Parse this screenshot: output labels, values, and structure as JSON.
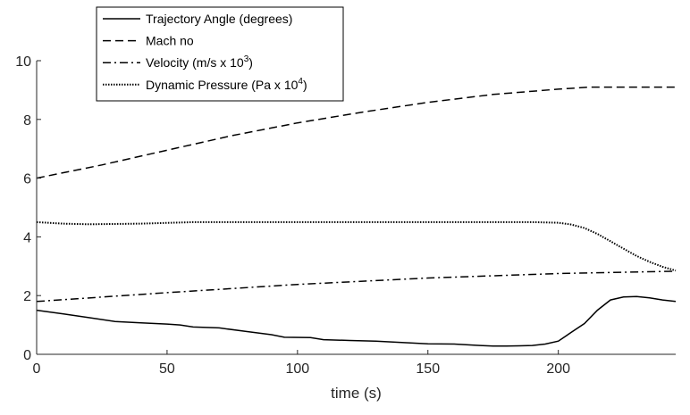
{
  "chart_data": {
    "type": "line",
    "title": "",
    "xlabel": "time (s)",
    "ylabel": "",
    "xlim": [
      0,
      245
    ],
    "ylim": [
      0,
      10
    ],
    "xticks": [
      0,
      50,
      100,
      150,
      200
    ],
    "yticks": [
      0,
      2,
      4,
      6,
      8,
      10
    ],
    "grid": false,
    "legend_position": "top-left",
    "series": [
      {
        "name": "Trajectory Angle (degrees)",
        "style": "solid",
        "x": [
          0,
          10,
          20,
          30,
          40,
          50,
          55,
          60,
          70,
          80,
          90,
          95,
          105,
          110,
          120,
          130,
          140,
          150,
          160,
          170,
          175,
          180,
          185,
          190,
          195,
          200,
          205,
          210,
          215,
          220,
          225,
          230,
          235,
          240,
          245
        ],
        "y": [
          1.5,
          1.38,
          1.25,
          1.12,
          1.07,
          1.03,
          1.0,
          0.93,
          0.9,
          0.78,
          0.67,
          0.58,
          0.57,
          0.5,
          0.47,
          0.45,
          0.4,
          0.36,
          0.35,
          0.3,
          0.28,
          0.28,
          0.29,
          0.3,
          0.35,
          0.45,
          0.75,
          1.05,
          1.5,
          1.85,
          1.95,
          1.97,
          1.92,
          1.85,
          1.8
        ]
      },
      {
        "name": "Mach no",
        "style": "dashed",
        "x": [
          0,
          25,
          50,
          75,
          100,
          125,
          150,
          175,
          200,
          212,
          225,
          245
        ],
        "y": [
          6.0,
          6.45,
          6.95,
          7.45,
          7.88,
          8.25,
          8.58,
          8.85,
          9.03,
          9.1,
          9.1,
          9.1
        ]
      },
      {
        "name": "Velocity (m/s x 10³)",
        "style": "dashdot",
        "x": [
          0,
          50,
          100,
          150,
          200,
          245
        ],
        "y": [
          1.8,
          2.1,
          2.38,
          2.6,
          2.75,
          2.83
        ]
      },
      {
        "name": "Dynamic Pressure (Pa x 10⁴)",
        "style": "dotted",
        "x": [
          0,
          10,
          20,
          40,
          60,
          100,
          150,
          190,
          200,
          205,
          210,
          215,
          220,
          225,
          230,
          235,
          240,
          245
        ],
        "y": [
          4.5,
          4.45,
          4.43,
          4.45,
          4.5,
          4.5,
          4.5,
          4.5,
          4.48,
          4.42,
          4.3,
          4.1,
          3.85,
          3.6,
          3.35,
          3.15,
          2.98,
          2.85
        ]
      }
    ]
  }
}
